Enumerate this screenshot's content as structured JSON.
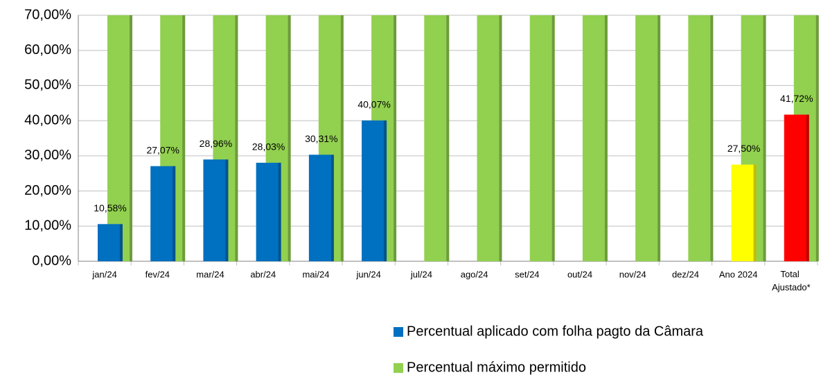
{
  "chart_data": {
    "type": "bar",
    "categories": [
      "jan/24",
      "fev/24",
      "mar/24",
      "abr/24",
      "mai/24",
      "jun/24",
      "jul/24",
      "ago/24",
      "set/24",
      "out/24",
      "nov/24",
      "dez/24",
      "Ano 2024",
      "Total Ajustado*"
    ],
    "series": [
      {
        "name": "Percentual aplicado com folha pagto da Câmara",
        "color": "#0070c0",
        "colors": [
          "#0070c0",
          "#0070c0",
          "#0070c0",
          "#0070c0",
          "#0070c0",
          "#0070c0",
          "#0070c0",
          "#0070c0",
          "#0070c0",
          "#0070c0",
          "#0070c0",
          "#0070c0",
          "#ffff00",
          "#ff0000"
        ],
        "values": [
          10.58,
          27.07,
          28.96,
          28.03,
          30.31,
          40.07,
          null,
          null,
          null,
          null,
          null,
          null,
          27.5,
          41.72
        ],
        "value_labels": [
          "10,58%",
          "27,07%",
          "28,96%",
          "28,03%",
          "30,31%",
          "40,07%",
          null,
          null,
          null,
          null,
          null,
          null,
          "27,50%",
          "41,72%"
        ]
      },
      {
        "name": "Percentual máximo permitido",
        "color": "#92d050",
        "values": [
          70,
          70,
          70,
          70,
          70,
          70,
          70,
          70,
          70,
          70,
          70,
          70,
          70,
          70
        ]
      }
    ],
    "ylim": [
      0,
      70
    ],
    "yticks": [
      {
        "value": 0,
        "label": "0,00%"
      },
      {
        "value": 10,
        "label": "10,00%"
      },
      {
        "value": 20,
        "label": "20,00%"
      },
      {
        "value": 30,
        "label": "30,00%"
      },
      {
        "value": 40,
        "label": "40,00%"
      },
      {
        "value": 50,
        "label": "50,00%"
      },
      {
        "value": 60,
        "label": "60,00%"
      },
      {
        "value": 70,
        "label": "70,00%"
      }
    ],
    "grid": true
  }
}
